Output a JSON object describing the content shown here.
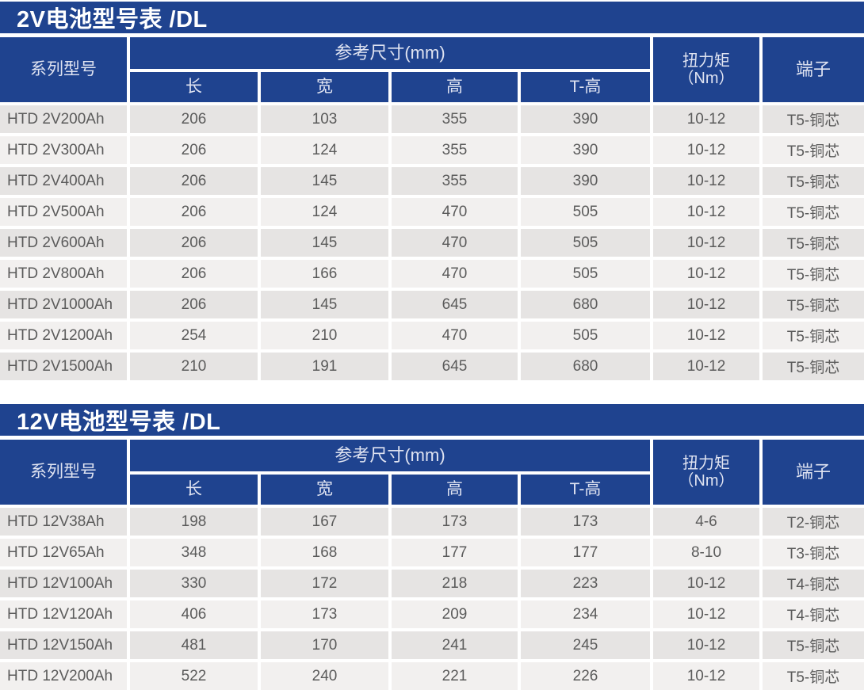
{
  "colors": {
    "primary_blue": "#1f438f",
    "row_odd_bg": "#e6e4e3",
    "row_even_bg": "#f2f0ef",
    "data_text": "#5b5b5b",
    "header_text": "#dfe3f1",
    "title_text": "#ffffff"
  },
  "tables": [
    {
      "title": "2V电池型号表 /DL",
      "header": {
        "series": "系列型号",
        "dims_group": "参考尺寸(mm)",
        "dims": [
          "长",
          "宽",
          "高",
          "T-高"
        ],
        "torque_line1": "扭力矩",
        "torque_line2": "（Nm）",
        "terminal": "端子"
      },
      "rows": [
        [
          "HTD 2V200Ah",
          "206",
          "103",
          "355",
          "390",
          "10-12",
          "T5-铜芯"
        ],
        [
          "HTD 2V300Ah",
          "206",
          "124",
          "355",
          "390",
          "10-12",
          "T5-铜芯"
        ],
        [
          "HTD 2V400Ah",
          "206",
          "145",
          "355",
          "390",
          "10-12",
          "T5-铜芯"
        ],
        [
          "HTD 2V500Ah",
          "206",
          "124",
          "470",
          "505",
          "10-12",
          "T5-铜芯"
        ],
        [
          "HTD 2V600Ah",
          "206",
          "145",
          "470",
          "505",
          "10-12",
          "T5-铜芯"
        ],
        [
          "HTD 2V800Ah",
          "206",
          "166",
          "470",
          "505",
          "10-12",
          "T5-铜芯"
        ],
        [
          "HTD 2V1000Ah",
          "206",
          "145",
          "645",
          "680",
          "10-12",
          "T5-铜芯"
        ],
        [
          "HTD 2V1200Ah",
          "254",
          "210",
          "470",
          "505",
          "10-12",
          "T5-铜芯"
        ],
        [
          "HTD 2V1500Ah",
          "210",
          "191",
          "645",
          "680",
          "10-12",
          "T5-铜芯"
        ]
      ]
    },
    {
      "title": "12V电池型号表 /DL",
      "header": {
        "series": "系列型号",
        "dims_group": "参考尺寸(mm)",
        "dims": [
          "长",
          "宽",
          "高",
          "T-高"
        ],
        "torque_line1": "扭力矩",
        "torque_line2": "（Nm）",
        "terminal": "端子"
      },
      "rows": [
        [
          "HTD 12V38Ah",
          "198",
          "167",
          "173",
          "173",
          "4-6",
          "T2-铜芯"
        ],
        [
          "HTD 12V65Ah",
          "348",
          "168",
          "177",
          "177",
          "8-10",
          "T3-铜芯"
        ],
        [
          "HTD 12V100Ah",
          "330",
          "172",
          "218",
          "223",
          "10-12",
          "T4-铜芯"
        ],
        [
          "HTD 12V120Ah",
          "406",
          "173",
          "209",
          "234",
          "10-12",
          "T4-铜芯"
        ],
        [
          "HTD 12V150Ah",
          "481",
          "170",
          "241",
          "245",
          "10-12",
          "T5-铜芯"
        ],
        [
          "HTD 12V200Ah",
          "522",
          "240",
          "221",
          "226",
          "10-12",
          "T5-铜芯"
        ]
      ]
    }
  ]
}
